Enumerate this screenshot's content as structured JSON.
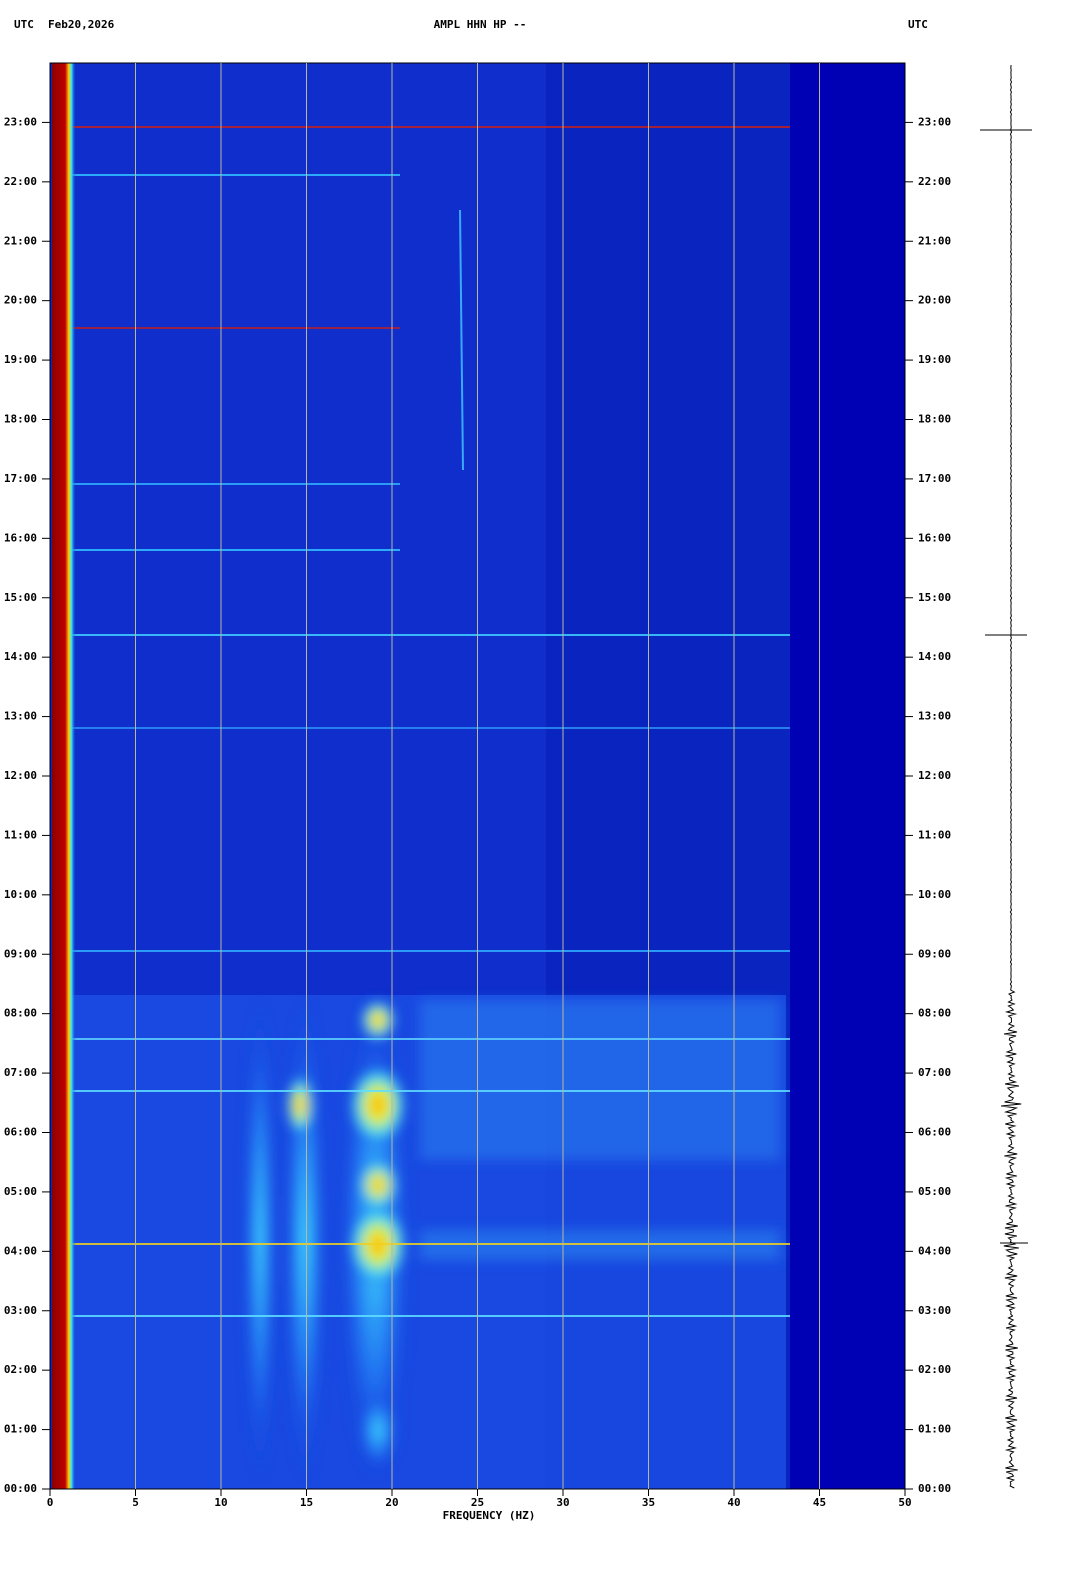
{
  "chart_data": {
    "type": "spectrogram",
    "title": "AMPL HHN HP --",
    "time_zone_left": "UTC",
    "date": "Feb20,2026",
    "time_zone_right": "UTC",
    "x_label": "FREQUENCY (HZ)",
    "xlim": [
      0,
      50
    ],
    "xticks": [
      0,
      5,
      10,
      15,
      20,
      25,
      30,
      35,
      40,
      45,
      50
    ],
    "ylim": [
      0,
      24
    ],
    "yticks": [
      {
        "value": 0,
        "label": "00:00"
      },
      {
        "value": 1,
        "label": "01:00"
      },
      {
        "value": 2,
        "label": "02:00"
      },
      {
        "value": 3,
        "label": "03:00"
      },
      {
        "value": 4,
        "label": "04:00"
      },
      {
        "value": 5,
        "label": "05:00"
      },
      {
        "value": 6,
        "label": "06:00"
      },
      {
        "value": 7,
        "label": "07:00"
      },
      {
        "value": 8,
        "label": "08:00"
      },
      {
        "value": 9,
        "label": "09:00"
      },
      {
        "value": 10,
        "label": "10:00"
      },
      {
        "value": 11,
        "label": "11:00"
      },
      {
        "value": 12,
        "label": "12:00"
      },
      {
        "value": 13,
        "label": "13:00"
      },
      {
        "value": 14,
        "label": "14:00"
      },
      {
        "value": 15,
        "label": "15:00"
      },
      {
        "value": 16,
        "label": "16:00"
      },
      {
        "value": 17,
        "label": "17:00"
      },
      {
        "value": 18,
        "label": "18:00"
      },
      {
        "value": 19,
        "label": "19:00"
      },
      {
        "value": 20,
        "label": "20:00"
      },
      {
        "value": 21,
        "label": "21:00"
      },
      {
        "value": 22,
        "label": "22:00"
      },
      {
        "value": 23,
        "label": "23:00"
      }
    ],
    "grid": true
  }
}
